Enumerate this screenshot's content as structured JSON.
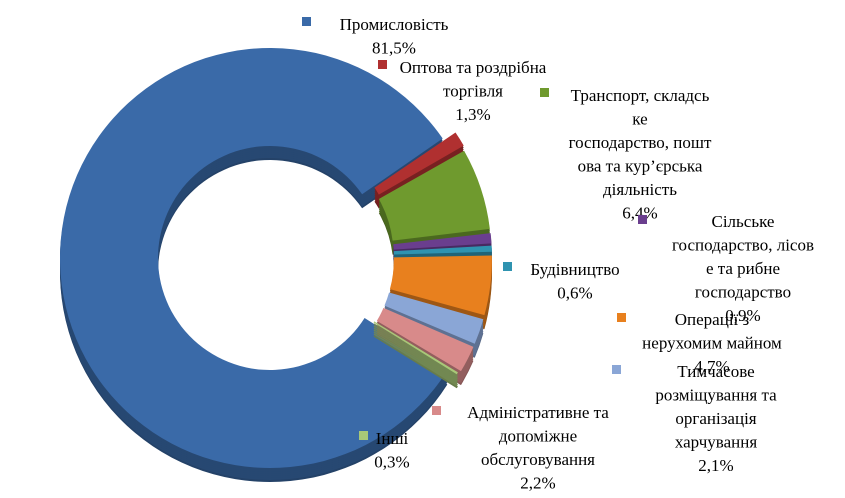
{
  "chart_data": {
    "type": "pie",
    "style": "exploded 3D doughnut",
    "legend": "labels beside slices with colored square markers",
    "slices": [
      {
        "name_lines": [
          "Промисловість"
        ],
        "value": 81.5,
        "value_label": "81,5%",
        "color": "#3a6aa8"
      },
      {
        "name_lines": [
          "Оптова та роздрібна",
          "торгівля"
        ],
        "value": 1.3,
        "value_label": "1,3%",
        "color": "#b03030"
      },
      {
        "name_lines": [
          "Транспорт, складсь",
          "ке",
          "господарство, пошт",
          "ова та кур’єрська",
          "діяльність"
        ],
        "value": 6.4,
        "value_label": "6,4%",
        "color": "#6f9a2e"
      },
      {
        "name_lines": [
          "Сільське",
          "господарство, лісов",
          "е та рибне",
          "господарство"
        ],
        "value": 0.9,
        "value_label": "0,9%",
        "color": "#6a3e8e"
      },
      {
        "name_lines": [
          "Будівництво"
        ],
        "value": 0.6,
        "value_label": "0,6%",
        "color": "#2f93b0"
      },
      {
        "name_lines": [
          "Операції з",
          "нерухомим майном"
        ],
        "value": 4.7,
        "value_label": "4,7%",
        "color": "#e8801e"
      },
      {
        "name_lines": [
          "Тимчасове",
          "розміщування та",
          "організація",
          "харчування"
        ],
        "value": 2.1,
        "value_label": "2,1%",
        "color": "#8aa6d6"
      },
      {
        "name_lines": [
          "Адміністративне та",
          "допоміжне",
          "обслуговування"
        ],
        "value": 2.2,
        "value_label": "2,2%",
        "color": "#d88a8a"
      },
      {
        "name_lines": [
          "Інші"
        ],
        "value": 0.3,
        "value_label": "0,3%",
        "color": "#a8c878"
      }
    ]
  }
}
